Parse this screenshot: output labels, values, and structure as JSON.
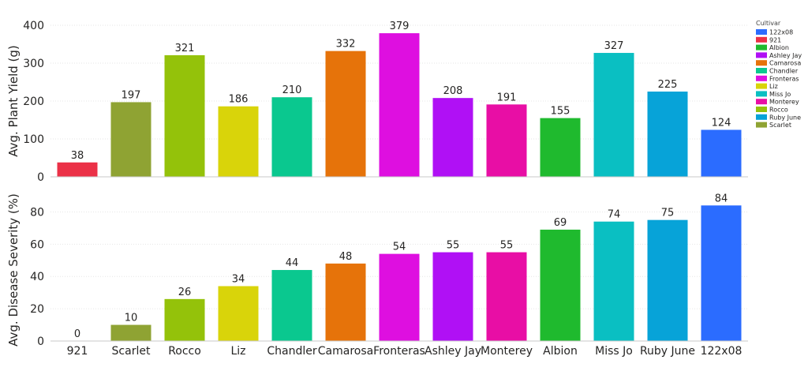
{
  "chart_data": [
    {
      "type": "bar",
      "ylabel": "Avg. Plant Yield (g)",
      "xlabel": "",
      "ylim": [
        0,
        400
      ],
      "yticks": [
        0,
        100,
        200,
        300,
        400
      ],
      "grid": true,
      "categories": [
        "921",
        "Scarlet",
        "Rocco",
        "Liz",
        "Chandler",
        "Camarosa",
        "Fronteras",
        "Ashley Jay",
        "Monterey",
        "Albion",
        "Miss Jo",
        "Ruby June",
        "122x08"
      ],
      "values": [
        38,
        197,
        321,
        186,
        210,
        332,
        379,
        208,
        191,
        155,
        327,
        225,
        124
      ],
      "data_labels": [
        "38",
        "197",
        "321",
        "186",
        "210",
        "332",
        "379",
        "208",
        "191",
        "155",
        "327",
        "225",
        "124"
      ]
    },
    {
      "type": "bar",
      "ylabel": "Avg. Disease Severity (%)",
      "xlabel": "",
      "ylim": [
        0,
        90
      ],
      "yticks": [
        0,
        20,
        40,
        60,
        80
      ],
      "grid": true,
      "categories": [
        "921",
        "Scarlet",
        "Rocco",
        "Liz",
        "Chandler",
        "Camarosa",
        "Fronteras",
        "Ashley Jay",
        "Monterey",
        "Albion",
        "Miss Jo",
        "Ruby June",
        "122x08"
      ],
      "values": [
        0,
        10,
        26,
        34,
        44,
        48,
        54,
        55,
        55,
        69,
        74,
        75,
        84
      ],
      "data_labels": [
        "0",
        "10",
        "26",
        "34",
        "44",
        "48",
        "54",
        "55",
        "55",
        "69",
        "74",
        "75",
        "84"
      ]
    }
  ],
  "legend": {
    "title": "Cultivar",
    "placement": "top-right",
    "items": [
      {
        "name": "122x08",
        "color": "#2B6CFF"
      },
      {
        "name": "921",
        "color": "#EB3147"
      },
      {
        "name": "Albion",
        "color": "#1FBA2E"
      },
      {
        "name": "Ashley Jay",
        "color": "#B010F5"
      },
      {
        "name": "Camarosa",
        "color": "#E6730A"
      },
      {
        "name": "Chandler",
        "color": "#0AC88F"
      },
      {
        "name": "Fronteras",
        "color": "#DE0FE0"
      },
      {
        "name": "Liz",
        "color": "#D9D40A"
      },
      {
        "name": "Miss Jo",
        "color": "#0ABFC2"
      },
      {
        "name": "Monterey",
        "color": "#E80EA5"
      },
      {
        "name": "Rocco",
        "color": "#94C20A"
      },
      {
        "name": "Ruby June",
        "color": "#07A3D8"
      },
      {
        "name": "Scarlet",
        "color": "#8FA333"
      }
    ]
  }
}
